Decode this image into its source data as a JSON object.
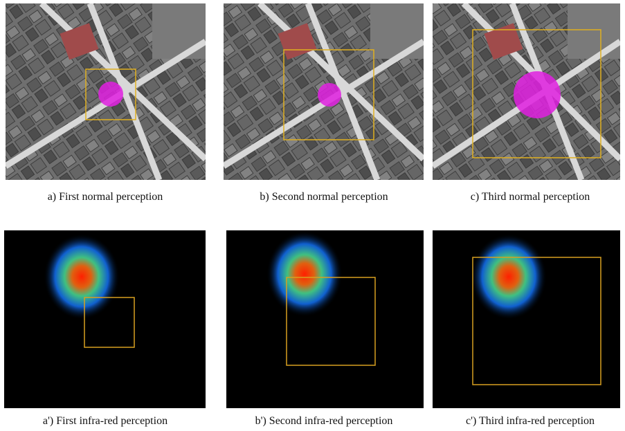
{
  "figure": {
    "panels": [
      {
        "caption": "a) First normal perception"
      },
      {
        "caption": "b) Second normal perception"
      },
      {
        "caption": "c) Third normal perception"
      },
      {
        "caption": "a') First infra-red perception"
      },
      {
        "caption": "b') Second infra-red perception"
      },
      {
        "caption": "c') Third infra-red perception"
      }
    ]
  }
}
